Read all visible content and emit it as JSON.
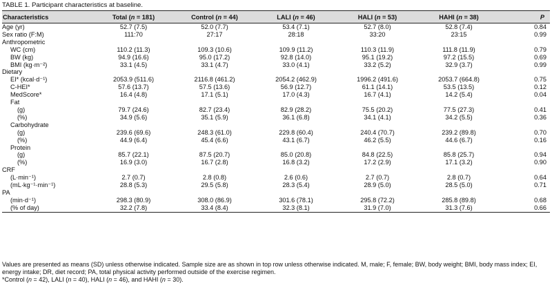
{
  "caption": "TABLE 1. Participant characteristics at baseline.",
  "headers": [
    {
      "pre": "Characteristics",
      "n": "",
      "post": ""
    },
    {
      "pre": "Total (",
      "n": "n",
      "post": " = 181)"
    },
    {
      "pre": "Control (",
      "n": "n",
      "post": " = 44)"
    },
    {
      "pre": "LALI (",
      "n": "n",
      "post": " = 46)"
    },
    {
      "pre": "HALI (",
      "n": "n",
      "post": " = 53)"
    },
    {
      "pre": "HAHI (",
      "n": "n",
      "post": " = 38)"
    },
    {
      "pre": "",
      "n": "P",
      "post": ""
    }
  ],
  "rows": [
    {
      "label": "Age (yr)",
      "indent": 0,
      "v": [
        "52.7 (7.5)",
        "52.0 (7.7)",
        "53.4 (7.1)",
        "52.7 (8.0)",
        "52.8 (7.4)",
        "0.84"
      ]
    },
    {
      "label": "Sex ratio (F:M)",
      "indent": 0,
      "v": [
        "111:70",
        "27:17",
        "28:18",
        "33:20",
        "23:15",
        "0.99"
      ]
    },
    {
      "label": "Anthropometric",
      "indent": 0,
      "v": [
        "",
        "",
        "",
        "",
        "",
        ""
      ]
    },
    {
      "label": "WC (cm)",
      "indent": 1,
      "v": [
        "110.2 (11.3)",
        "109.3 (10.6)",
        "109.9 (11.2)",
        "110.3 (11.9)",
        "111.8 (11.9)",
        "0.79"
      ]
    },
    {
      "label": "BW (kg)",
      "indent": 1,
      "v": [
        "94.9 (16.6)",
        "95.0 (17.2)",
        "92.8 (14.0)",
        "95.1 (19.2)",
        "97.2 (15.5)",
        "0.69"
      ]
    },
    {
      "label": "BMI (kg·m⁻²)",
      "indent": 1,
      "v": [
        "33.1 (4.5)",
        "33.1 (4.7)",
        "33.0 (4.1)",
        "33.2 (5.2)",
        "32.9 (3.7)",
        "0.99"
      ]
    },
    {
      "label": "Dietary",
      "indent": 0,
      "v": [
        "",
        "",
        "",
        "",
        "",
        ""
      ]
    },
    {
      "label": "EI* (kcal·d⁻¹)",
      "indent": 1,
      "v": [
        "2053.9 (511.6)",
        "2116.8 (461.2)",
        "2054.2 (462.9)",
        "1996.2 (491.6)",
        "2053.7 (664.8)",
        "0.75"
      ]
    },
    {
      "label": "C-HEI*",
      "indent": 1,
      "v": [
        "57.6 (13.7)",
        "57.5 (13.6)",
        "56.9 (12.7)",
        "61.1 (14.1)",
        "53.5 (13.5)",
        "0.12"
      ]
    },
    {
      "label": "MedScore*",
      "indent": 1,
      "v": [
        "16.4 (4.8)",
        "17.1 (5.1)",
        "17.0 (4.3)",
        "16.7 (4.1)",
        "14.2 (5.4)",
        "0.04"
      ]
    },
    {
      "label": "Fat",
      "indent": 1,
      "v": [
        "",
        "",
        "",
        "",
        "",
        ""
      ]
    },
    {
      "label": "(g)",
      "indent": 2,
      "v": [
        "79.7 (24.6)",
        "82.7 (23.4)",
        "82.9 (28.2)",
        "75.5 (20.2)",
        "77.5 (27.3)",
        "0.41"
      ]
    },
    {
      "label": "(%)",
      "indent": 2,
      "v": [
        "34.9 (5.6)",
        "35.1 (5.9)",
        "36.1 (6.8)",
        "34.1 (4.1)",
        "34.2 (5.5)",
        "0.36"
      ]
    },
    {
      "label": "Carbohydrate",
      "indent": 1,
      "v": [
        "",
        "",
        "",
        "",
        "",
        ""
      ]
    },
    {
      "label": "(g)",
      "indent": 2,
      "v": [
        "239.6 (69.6)",
        "248.3 (61.0)",
        "229.8 (60.4)",
        "240.4 (70.7)",
        "239.2 (89.8)",
        "0.70"
      ]
    },
    {
      "label": "(%)",
      "indent": 2,
      "v": [
        "44.9 (6.4)",
        "45.4 (6.6)",
        "43.1 (6.7)",
        "46.2 (5.5)",
        "44.6 (6.7)",
        "0.16"
      ]
    },
    {
      "label": "Protein",
      "indent": 1,
      "v": [
        "",
        "",
        "",
        "",
        "",
        ""
      ]
    },
    {
      "label": "(g)",
      "indent": 2,
      "v": [
        "85.7 (22.1)",
        "87.5 (20.7)",
        "85.0 (20.8)",
        "84.8 (22.5)",
        "85.8 (25.7)",
        "0.94"
      ]
    },
    {
      "label": "(%)",
      "indent": 2,
      "v": [
        "16.9 (3.0)",
        "16.7 (2.8)",
        "16.8 (3.2)",
        "17.2 (2.9)",
        "17.1 (3.2)",
        "0.90"
      ]
    },
    {
      "label": "CRF",
      "indent": 0,
      "v": [
        "",
        "",
        "",
        "",
        "",
        ""
      ]
    },
    {
      "label": "(L·min⁻¹)",
      "indent": 1,
      "v": [
        "2.7 (0.7)",
        "2.8 (0.8)",
        "2.6 (0.6)",
        "2.7 (0.7)",
        "2.8 (0.7)",
        "0.64"
      ]
    },
    {
      "label": "(mL·kg⁻¹·min⁻¹)",
      "indent": 1,
      "v": [
        "28.8 (5.3)",
        "29.5 (5.8)",
        "28.3 (5.4)",
        "28.9 (5.0)",
        "28.5 (5.0)",
        "0.71"
      ]
    },
    {
      "label": "PA",
      "indent": 0,
      "v": [
        "",
        "",
        "",
        "",
        "",
        ""
      ]
    },
    {
      "label": "(min·d⁻¹)",
      "indent": 1,
      "v": [
        "298.3 (80.9)",
        "308.0 (86.9)",
        "301.6 (78.1)",
        "295.8 (72.2)",
        "285.8 (89.8)",
        "0.68"
      ]
    },
    {
      "label": "(% of day)",
      "indent": 1,
      "v": [
        "32.2 (7.8)",
        "33.4 (8.4)",
        "32.3 (8.1)",
        "31.9 (7.0)",
        "31.3 (7.6)",
        "0.66"
      ]
    }
  ],
  "note1": "Values are presented as means (SD) unless otherwise indicated. Sample size are as shown in top row unless otherwise indicated. M, male; F, female; BW, body weight; BMI, body mass index; EI, energy intake; DR, diet record; PA, total physical activity performed outside of the exercise regimen.",
  "note2": {
    "parts": [
      {
        "t": "*Control ("
      },
      {
        "i": "n"
      },
      {
        "t": " = 42), LALI ("
      },
      {
        "i": "n"
      },
      {
        "t": " = 40), HALI ("
      },
      {
        "i": "n"
      },
      {
        "t": " = 46), and HAHI ("
      },
      {
        "i": "n"
      },
      {
        "t": " = 30)."
      }
    ]
  }
}
